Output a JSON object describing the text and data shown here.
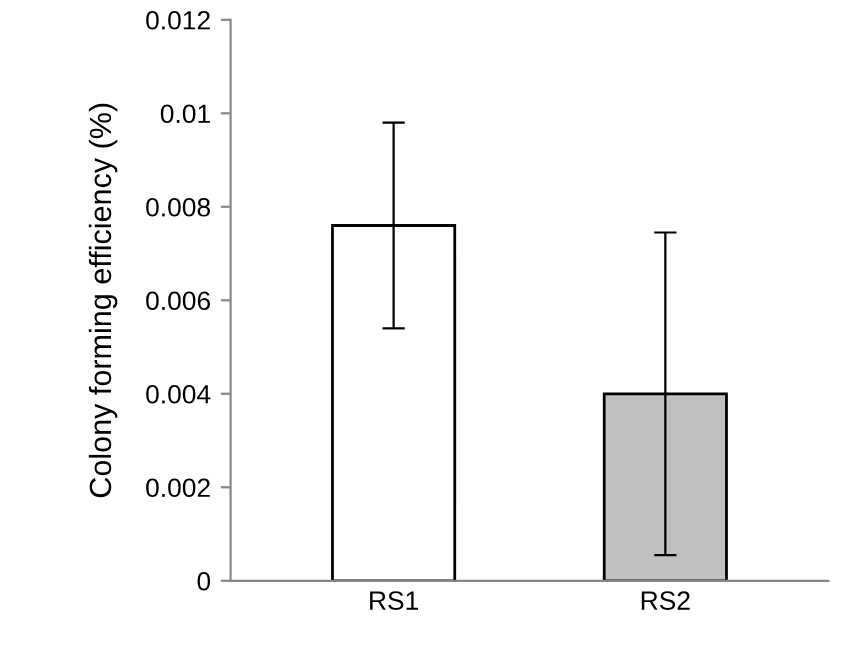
{
  "chart_data": {
    "type": "bar",
    "ylabel": "Colony forming efficiency (%)",
    "categories": [
      "RS1",
      "RS2"
    ],
    "values": [
      0.0076,
      0.004
    ],
    "colors": [
      "#ffffff",
      "#c0c0c0"
    ],
    "errors": [
      [
        0.0054,
        0.0098
      ],
      [
        0.00055,
        0.00745
      ]
    ],
    "ylim": [
      0,
      0.012
    ],
    "yticks": [
      0,
      0.002,
      0.004,
      0.006,
      0.008,
      0.01,
      0.012
    ],
    "grid": false,
    "legend": false
  }
}
